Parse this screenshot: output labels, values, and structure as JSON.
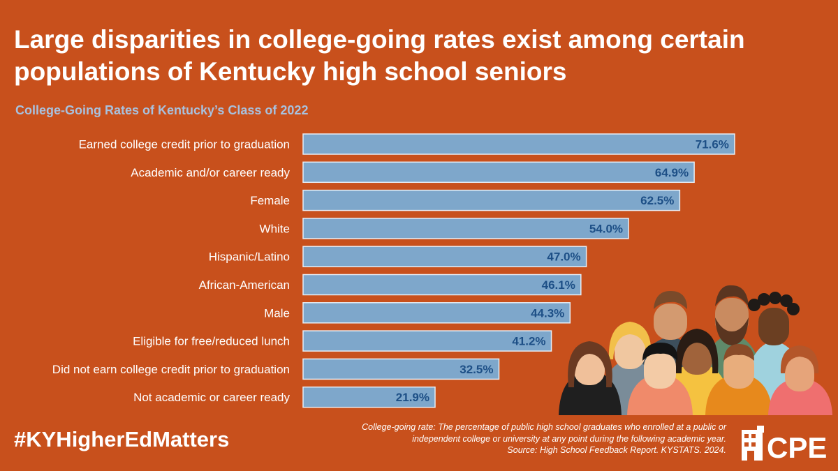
{
  "title": "Large disparities in college-going rates exist among certain populations of Kentucky high school seniors",
  "subtitle": "College-Going Rates of Kentucky’s Class of 2022",
  "hashtag": "#KYHigherEdMatters",
  "footnote": {
    "line1": "College-going rate: The percentage of public high school graduates who enrolled at a public or",
    "line2": "independent college or university at any point during the following academic year.",
    "line3": "Source: High School Feedback Report. KYSTATS. 2024."
  },
  "logo": {
    "text": "CPE",
    "icon": "cpe-building-icon"
  },
  "illustration": {
    "icon": "group-of-people-illustration"
  },
  "colors": {
    "background": "#c8501c",
    "bar": "#7ea7cb",
    "bar_border": "#e6eef6",
    "value_text": "#1d4f86",
    "subtitle": "#a8c1de"
  },
  "chart_data": {
    "type": "bar",
    "orientation": "horizontal",
    "title": "College-Going Rates of Kentucky’s Class of 2022",
    "xlabel": "",
    "ylabel": "",
    "xlim": [
      0,
      100
    ],
    "grid": false,
    "value_suffix": "%",
    "categories": [
      "Earned college credit prior to graduation",
      "Academic and/or career ready",
      "Female",
      "White",
      "Hispanic/Latino",
      "African-American",
      "Male",
      "Eligible for free/reduced lunch",
      "Did not earn college credit prior to graduation",
      "Not academic or career ready"
    ],
    "values": [
      71.6,
      64.9,
      62.5,
      54.0,
      47.0,
      46.1,
      44.3,
      41.2,
      32.5,
      21.9
    ],
    "labels": [
      "71.6%",
      "64.9%",
      "62.5%",
      "54.0%",
      "47.0%",
      "46.1%",
      "44.3%",
      "41.2%",
      "32.5%",
      "21.9%"
    ]
  }
}
